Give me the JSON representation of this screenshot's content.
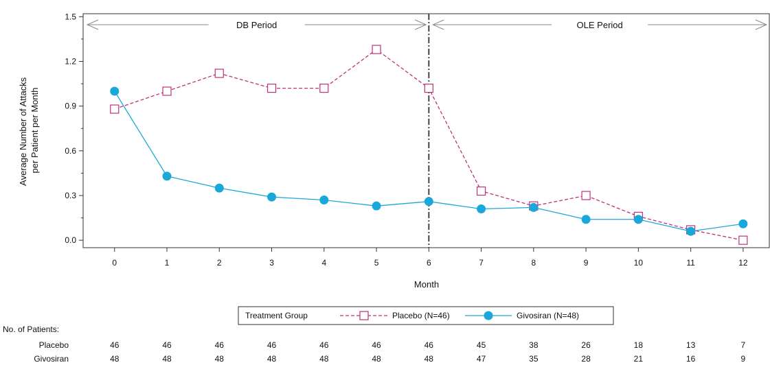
{
  "chart_data": {
    "type": "line",
    "xlabel": "Month",
    "ylabel_lines": [
      "Average Number of Attacks",
      "per Patient per Month"
    ],
    "xlim": [
      -0.6,
      12.5
    ],
    "ylim": [
      -0.05,
      1.52
    ],
    "xticks": [
      "0",
      "1",
      "2",
      "3",
      "4",
      "5",
      "6",
      "7",
      "8",
      "9",
      "10",
      "11",
      "12"
    ],
    "yticks": [
      "0.0",
      "0.3",
      "0.6",
      "0.9",
      "1.2",
      "1.5"
    ],
    "ytick_values": [
      0.0,
      0.3,
      0.6,
      0.9,
      1.2,
      1.5
    ],
    "period_divider_x": 6,
    "periods": [
      {
        "label": "DB Period",
        "x_start": -0.6,
        "x_end": 6
      },
      {
        "label": "OLE Period",
        "x_start": 6,
        "x_end": 12.5
      }
    ],
    "series": [
      {
        "name": "Placebo (N=46)",
        "color": "#c0307a",
        "marker": "open-square",
        "line": "dashed",
        "x": [
          0,
          1,
          2,
          3,
          4,
          5,
          6,
          7,
          8,
          9,
          10,
          11,
          12
        ],
        "y": [
          0.88,
          1.0,
          1.12,
          1.02,
          1.02,
          1.28,
          1.02,
          0.33,
          0.23,
          0.3,
          0.16,
          0.07,
          0.0
        ]
      },
      {
        "name": "Givosiran (N=48)",
        "color": "#1aa7d9",
        "marker": "filled-circle",
        "line": "solid",
        "x": [
          0,
          1,
          2,
          3,
          4,
          5,
          6,
          7,
          8,
          9,
          10,
          11,
          12
        ],
        "y": [
          1.0,
          0.43,
          0.35,
          0.29,
          0.27,
          0.23,
          0.26,
          0.21,
          0.22,
          0.14,
          0.14,
          0.06,
          0.11
        ]
      }
    ],
    "legend": {
      "title": "Treatment Group",
      "placement": "bottom-center"
    },
    "patients_table": {
      "title": "No. of Patients:",
      "rows": [
        {
          "label": "Placebo",
          "values": [
            "46",
            "46",
            "46",
            "46",
            "46",
            "46",
            "46",
            "45",
            "38",
            "26",
            "18",
            "13",
            "7"
          ]
        },
        {
          "label": "Givosiran",
          "values": [
            "48",
            "48",
            "48",
            "48",
            "48",
            "48",
            "48",
            "47",
            "35",
            "28",
            "21",
            "16",
            "9"
          ]
        }
      ]
    }
  }
}
